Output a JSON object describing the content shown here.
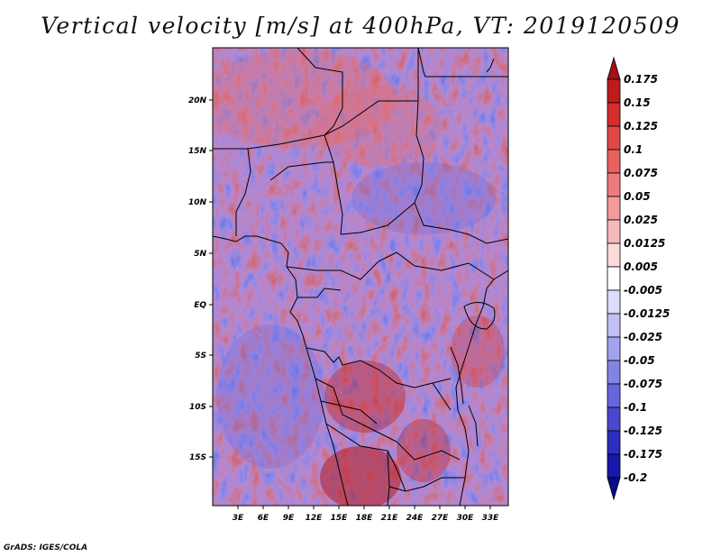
{
  "title": "Vertical velocity [m/s] at 400hPa, VT: 2019120509",
  "footer": "GrADS: IGES/COLA",
  "lat_labels": [
    "20N",
    "15N",
    "10N",
    "5N",
    "EQ",
    "5S",
    "10S",
    "15S"
  ],
  "lon_labels": [
    "3E",
    "6E",
    "9E",
    "12E",
    "15E",
    "18E",
    "21E",
    "24E",
    "27E",
    "30E",
    "33E"
  ],
  "colorbar": {
    "labels": [
      "0.175",
      "0.15",
      "0.125",
      "0.1",
      "0.075",
      "0.05",
      "0.025",
      "0.0125",
      "0.005",
      "-0.005",
      "-0.0125",
      "-0.025",
      "-0.05",
      "-0.075",
      "-0.1",
      "-0.125",
      "-0.175",
      "-0.2"
    ],
    "colors": [
      "#a50f15",
      "#c01b1b",
      "#d42d2d",
      "#e04848",
      "#e86060",
      "#ee7b7b",
      "#f39a9a",
      "#f7baba",
      "#fbdada",
      "#ffffff",
      "#dcdcfb",
      "#c0c0f5",
      "#a2a2ee",
      "#8383e6",
      "#6565dc",
      "#4848cf",
      "#2d2dbf",
      "#1818aa",
      "#0a0a8a"
    ]
  }
}
